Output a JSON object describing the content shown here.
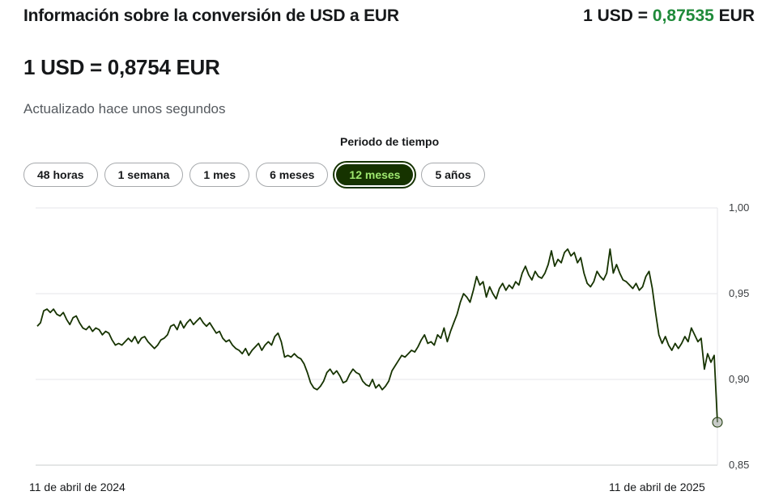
{
  "header": {
    "title": "Información sobre la conversión de USD a EUR",
    "rate_prefix": "1 USD = ",
    "rate_value": "0,87535",
    "rate_suffix": " EUR",
    "rate_color": "#1f8a3a"
  },
  "main_rate": "1 USD = 0,8754 EUR",
  "updated": "Actualizado hace unos segundos",
  "period": {
    "label": "Periodo de tiempo",
    "options": [
      "48 horas",
      "1 semana",
      "1 mes",
      "6 meses",
      "12 meses",
      "5 años"
    ],
    "selected": "12 meses",
    "selected_color": "#163300",
    "selected_text_color": "#9fe870"
  },
  "chart_data": {
    "type": "line",
    "title": "",
    "xlabel": "",
    "ylabel": "",
    "ylim": [
      0.85,
      1.0
    ],
    "yticks": [
      "1,00",
      "0,95",
      "0,90",
      "0,85"
    ],
    "ytick_values": [
      1.0,
      0.95,
      0.9,
      0.85
    ],
    "x_start_label": "11 de abril de 2024",
    "x_end_label": "11 de abril de 2025",
    "grid": true,
    "line_color": "#163300",
    "series": [
      {
        "values": [
          0.931,
          0.933,
          0.94,
          0.941,
          0.939,
          0.941,
          0.938,
          0.937,
          0.939,
          0.935,
          0.932,
          0.936,
          0.937,
          0.933,
          0.93,
          0.929,
          0.931,
          0.928,
          0.93,
          0.929,
          0.926,
          0.928,
          0.927,
          0.923,
          0.92,
          0.921,
          0.92,
          0.922,
          0.924,
          0.922,
          0.925,
          0.921,
          0.924,
          0.925,
          0.922,
          0.92,
          0.918,
          0.92,
          0.923,
          0.924,
          0.926,
          0.931,
          0.932,
          0.929,
          0.934,
          0.93,
          0.933,
          0.935,
          0.932,
          0.934,
          0.936,
          0.933,
          0.931,
          0.933,
          0.93,
          0.927,
          0.928,
          0.924,
          0.922,
          0.923,
          0.92,
          0.918,
          0.917,
          0.915,
          0.918,
          0.914,
          0.917,
          0.919,
          0.921,
          0.917,
          0.92,
          0.922,
          0.92,
          0.925,
          0.927,
          0.922,
          0.913,
          0.914,
          0.913,
          0.915,
          0.913,
          0.912,
          0.909,
          0.904,
          0.898,
          0.895,
          0.894,
          0.896,
          0.899,
          0.904,
          0.906,
          0.903,
          0.905,
          0.902,
          0.898,
          0.899,
          0.903,
          0.906,
          0.904,
          0.903,
          0.899,
          0.897,
          0.896,
          0.9,
          0.895,
          0.897,
          0.894,
          0.896,
          0.899,
          0.905,
          0.908,
          0.911,
          0.914,
          0.913,
          0.915,
          0.917,
          0.916,
          0.919,
          0.923,
          0.926,
          0.921,
          0.922,
          0.92,
          0.926,
          0.924,
          0.93,
          0.922,
          0.928,
          0.933,
          0.938,
          0.945,
          0.95,
          0.948,
          0.945,
          0.952,
          0.96,
          0.955,
          0.957,
          0.948,
          0.954,
          0.95,
          0.947,
          0.953,
          0.956,
          0.952,
          0.955,
          0.953,
          0.957,
          0.955,
          0.962,
          0.966,
          0.961,
          0.958,
          0.963,
          0.96,
          0.959,
          0.962,
          0.967,
          0.975,
          0.966,
          0.97,
          0.968,
          0.974,
          0.976,
          0.972,
          0.974,
          0.968,
          0.971,
          0.962,
          0.956,
          0.954,
          0.957,
          0.963,
          0.96,
          0.958,
          0.962,
          0.976,
          0.962,
          0.967,
          0.962,
          0.958,
          0.957,
          0.955,
          0.953,
          0.956,
          0.952,
          0.954,
          0.96,
          0.963,
          0.953,
          0.939,
          0.926,
          0.921,
          0.925,
          0.92,
          0.917,
          0.921,
          0.918,
          0.921,
          0.925,
          0.922,
          0.93,
          0.926,
          0.922,
          0.924,
          0.906,
          0.915,
          0.91,
          0.914,
          0.875
        ]
      }
    ],
    "last_point_marker": true
  }
}
